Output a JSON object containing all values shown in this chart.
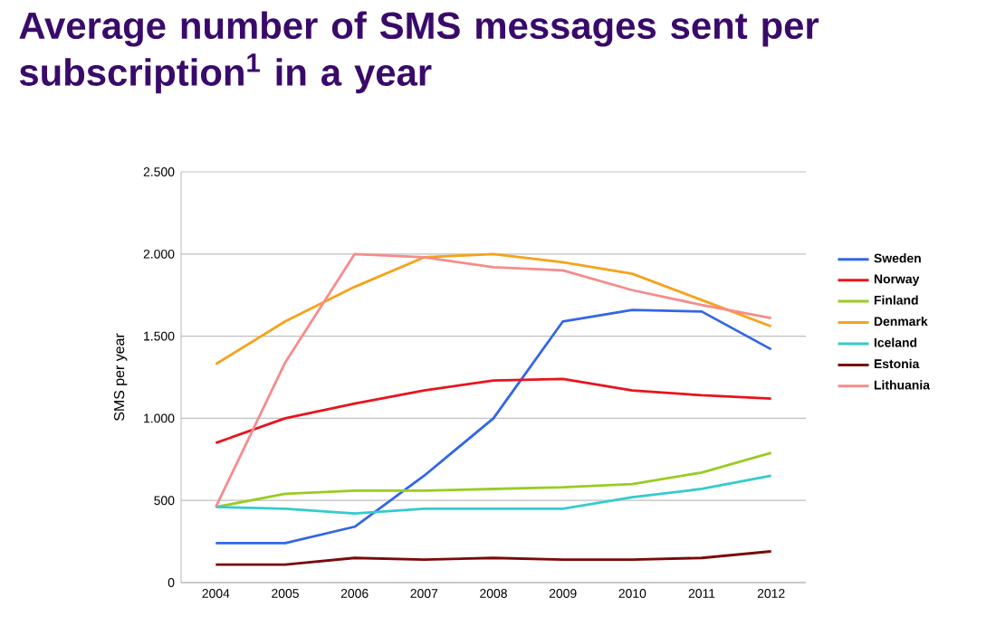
{
  "chart_data": {
    "type": "line",
    "title": "Average number of SMS messages sent per subscription$^{1}$ in a year",
    "ylabel": "SMS per year",
    "categories": [
      "2004",
      "2005",
      "2006",
      "2007",
      "2008",
      "2009",
      "2010",
      "2011",
      "2012"
    ],
    "series": [
      {
        "name": "Sweden",
        "color": "#3366e6",
        "values": [
          240,
          240,
          340,
          650,
          1000,
          1590,
          1660,
          1650,
          1420
        ]
      },
      {
        "name": "Norway",
        "color": "#e8141c",
        "values": [
          850,
          1000,
          1090,
          1170,
          1230,
          1240,
          1170,
          1140,
          1120
        ]
      },
      {
        "name": "Finland",
        "color": "#99cc22",
        "values": [
          460,
          540,
          560,
          560,
          570,
          580,
          600,
          670,
          790
        ]
      },
      {
        "name": "Denmark",
        "color": "#f5a31a",
        "values": [
          1330,
          1590,
          1800,
          1980,
          2000,
          1950,
          1880,
          1720,
          1560
        ]
      },
      {
        "name": "Iceland",
        "color": "#33cccc",
        "values": [
          460,
          450,
          420,
          450,
          450,
          450,
          520,
          570,
          650
        ]
      },
      {
        "name": "Estonia",
        "color": "#7a0a0a",
        "values": [
          110,
          110,
          150,
          140,
          150,
          140,
          140,
          150,
          190
        ]
      },
      {
        "name": "Lithuania",
        "color": "#f58c8c",
        "values": [
          460,
          1340,
          2000,
          1980,
          1920,
          1900,
          1780,
          1690,
          1610
        ]
      }
    ],
    "ylim": [
      0,
      2500
    ],
    "yticks": [
      {
        "value": 0,
        "label": "0"
      },
      {
        "value": 500,
        "label": "500"
      },
      {
        "value": 1000,
        "label": "1.000"
      },
      {
        "value": 1500,
        "label": "1.500"
      },
      {
        "value": 2000,
        "label": "2.000"
      },
      {
        "value": 2500,
        "label": "2.500"
      }
    ],
    "grid": "y",
    "legend": "right",
    "marker": "none",
    "line_style": "solid"
  }
}
